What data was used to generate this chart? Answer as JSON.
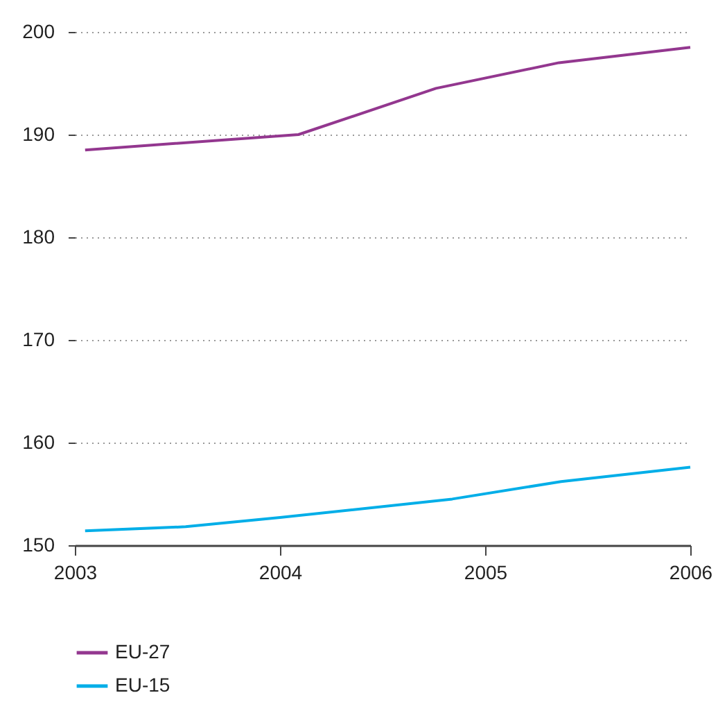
{
  "chart_data": {
    "type": "line",
    "series": [
      {
        "name": "EU-27",
        "color": "#93378f",
        "x": [
          2003.05,
          2004.09,
          2004.76,
          2005.36,
          2006
        ],
        "values": [
          188.5,
          190.0,
          194.5,
          197.0,
          198.5
        ]
      },
      {
        "name": "EU-15",
        "color": "#00aee8",
        "x": [
          2003.05,
          2003.54,
          2004.0,
          2004.84,
          2005.37,
          2006
        ],
        "values": [
          151.4,
          151.8,
          152.7,
          154.5,
          156.2,
          157.6
        ]
      }
    ],
    "xlim": [
      2003,
      2006
    ],
    "xticks": [
      2003,
      2004,
      2005,
      2006
    ],
    "ylim": [
      150,
      200
    ],
    "yticks": [
      150,
      160,
      170,
      180,
      190,
      200
    ],
    "grid": "y",
    "legend": "bottom",
    "marker": "none",
    "line_style": "solid"
  }
}
